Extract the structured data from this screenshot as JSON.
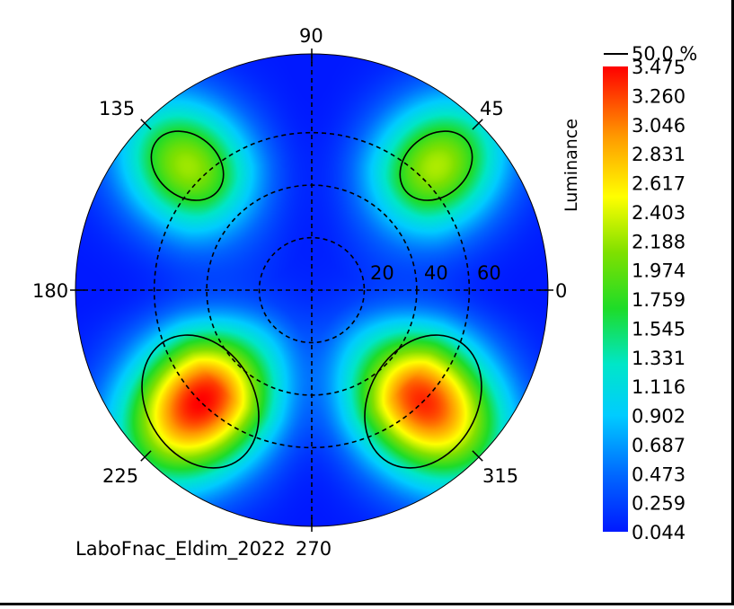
{
  "chart_data": {
    "type": "polar-heatmap",
    "metric_label": "Luminance",
    "contour_label": "50.0 %",
    "footer_text": "LaboFnac_Eldim_2022",
    "angle_labels": [
      "0",
      "45",
      "90",
      "135",
      "180",
      "225",
      "270",
      "315"
    ],
    "angles_deg": [
      0,
      45,
      90,
      135,
      180,
      225,
      270,
      315
    ],
    "radial_labels": [
      "20",
      "40",
      "60"
    ],
    "radial_values": [
      20,
      40,
      60
    ],
    "radial_max": 90,
    "colorbar_ticks": [
      "3.475",
      "3.260",
      "3.046",
      "2.831",
      "2.617",
      "2.403",
      "2.188",
      "1.974",
      "1.759",
      "1.545",
      "1.331",
      "1.116",
      "0.902",
      "0.687",
      "0.473",
      "0.259",
      "0.044"
    ],
    "value_range": [
      0.044,
      3.475
    ],
    "lobes": [
      {
        "azimuth": 45,
        "polar_center": 67,
        "peak": 2.25
      },
      {
        "azimuth": 135,
        "polar_center": 67,
        "peak": 2.2
      },
      {
        "azimuth": 225,
        "polar_center": 60,
        "peak": 3.475
      },
      {
        "azimuth": 315,
        "polar_center": 60,
        "peak": 3.35
      }
    ],
    "colors": {
      "low": "#0019ff",
      "mid_low": "#00e5ff",
      "mid": "#1fdc1f",
      "mid_high": "#ffff00",
      "high": "#ff0000"
    }
  }
}
